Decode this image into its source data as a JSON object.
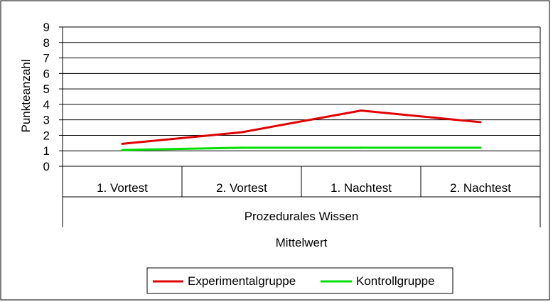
{
  "chart_data": {
    "type": "line",
    "ylabel": "Punkteanzahl",
    "ylim": [
      0,
      9
    ],
    "yticks": [
      "0",
      "1",
      "2",
      "3",
      "4",
      "5",
      "6",
      "7",
      "8",
      "9"
    ],
    "categories": [
      "1. Vortest",
      "2. Vortest",
      "1. Nachtest",
      "2. Nachtest"
    ],
    "category_group": "Prozedurales Wissen",
    "category_group_2": "Mittelwert",
    "grid": true,
    "legend_position": "bottom-center",
    "series": [
      {
        "name": "Experimentalgruppe",
        "color": "#e00000",
        "values": [
          1.45,
          2.2,
          3.6,
          2.85
        ]
      },
      {
        "name": "Kontrollgruppe",
        "color": "#00e000",
        "values": [
          1.05,
          1.2,
          1.2,
          1.2
        ]
      }
    ]
  }
}
